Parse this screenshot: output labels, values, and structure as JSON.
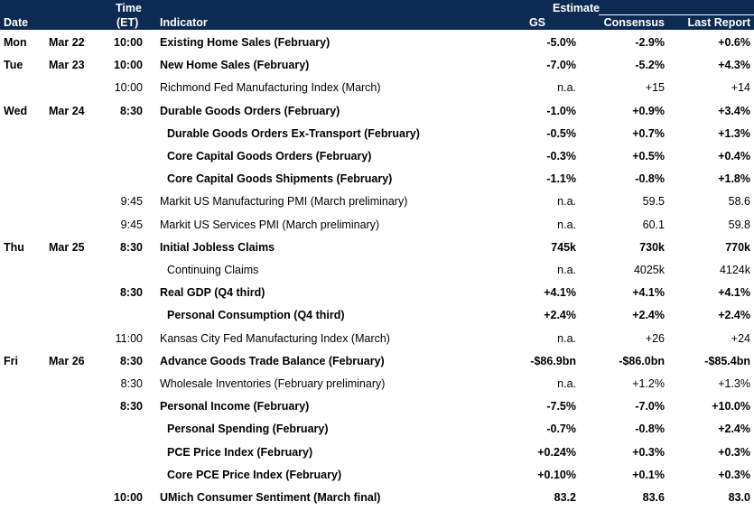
{
  "header": {
    "date": "Date",
    "time_line1": "Time",
    "time_line2": "(ET)",
    "indicator": "Indicator",
    "estimate": "Estimate",
    "gs": "GS",
    "consensus": "Consensus",
    "last_report": "Last Report"
  },
  "rows": [
    {
      "day": "Mon",
      "date": "Mar 22",
      "time": "10:00",
      "indicator": "Existing Home Sales (February)",
      "gs": "-5.0%",
      "consensus": "-2.9%",
      "last": "+0.6%"
    },
    {
      "day": "Tue",
      "date": "Mar 23",
      "time": "10:00",
      "indicator": "New Home Sales (February)",
      "gs": "-7.0%",
      "consensus": "-5.2%",
      "last": "+4.3%"
    },
    {
      "day": "",
      "date": "",
      "time": "10:00",
      "indicator": "Richmond Fed Manufacturing Index (March)",
      "gs": "n.a.",
      "consensus": "+15",
      "last": "+14"
    },
    {
      "day": "Wed",
      "date": "Mar 24",
      "time": "8:30",
      "indicator": "Durable Goods Orders (February)",
      "gs": "-1.0%",
      "consensus": "+0.9%",
      "last": "+3.4%"
    },
    {
      "day": "",
      "date": "",
      "time": "",
      "indicator": "Durable Goods Orders Ex-Transport (February)",
      "gs": "-0.5%",
      "consensus": "+0.7%",
      "last": "+1.3%"
    },
    {
      "day": "",
      "date": "",
      "time": "",
      "indicator": "Core Capital Goods Orders (February)",
      "gs": "-0.3%",
      "consensus": "+0.5%",
      "last": "+0.4%"
    },
    {
      "day": "",
      "date": "",
      "time": "",
      "indicator": "Core Capital Goods Shipments (February)",
      "gs": "-1.1%",
      "consensus": "-0.8%",
      "last": "+1.8%"
    },
    {
      "day": "",
      "date": "",
      "time": "9:45",
      "indicator": "Markit US Manufacturing PMI (March preliminary)",
      "gs": "n.a.",
      "consensus": "59.5",
      "last": "58.6"
    },
    {
      "day": "",
      "date": "",
      "time": "9:45",
      "indicator": "Markit US Services PMI (March preliminary)",
      "gs": "n.a.",
      "consensus": "60.1",
      "last": "59.8"
    },
    {
      "day": "Thu",
      "date": "Mar 25",
      "time": "8:30",
      "indicator": "Initial Jobless Claims",
      "gs": "745k",
      "consensus": "730k",
      "last": "770k"
    },
    {
      "day": "",
      "date": "",
      "time": "",
      "indicator": "Continuing Claims",
      "gs": "n.a.",
      "consensus": "4025k",
      "last": "4124k"
    },
    {
      "day": "",
      "date": "",
      "time": "8:30",
      "indicator": "Real GDP (Q4 third)",
      "gs": "+4.1%",
      "consensus": "+4.1%",
      "last": "+4.1%"
    },
    {
      "day": "",
      "date": "",
      "time": "",
      "indicator": "Personal Consumption (Q4 third)",
      "gs": "+2.4%",
      "consensus": "+2.4%",
      "last": "+2.4%"
    },
    {
      "day": "",
      "date": "",
      "time": "11:00",
      "indicator": "Kansas City Fed Manufacturing Index (March)",
      "gs": "n.a.",
      "consensus": "+26",
      "last": "+24"
    },
    {
      "day": "Fri",
      "date": "Mar 26",
      "time": "8:30",
      "indicator": "Advance Goods Trade Balance (February)",
      "gs": "-$86.9bn",
      "consensus": "-$86.0bn",
      "last": "-$85.4bn"
    },
    {
      "day": "",
      "date": "",
      "time": "8:30",
      "indicator": "Wholesale Inventories (February preliminary)",
      "gs": "n.a.",
      "consensus": "+1.2%",
      "last": "+1.3%"
    },
    {
      "day": "",
      "date": "",
      "time": "8:30",
      "indicator": "Personal Income (February)",
      "gs": "-7.5%",
      "consensus": "-7.0%",
      "last": "+10.0%"
    },
    {
      "day": "",
      "date": "",
      "time": "",
      "indicator": "Personal Spending (February)",
      "gs": "-0.7%",
      "consensus": "-0.8%",
      "last": "+2.4%"
    },
    {
      "day": "",
      "date": "",
      "time": "",
      "indicator": "PCE Price Index (February)",
      "gs": "+0.24%",
      "consensus": "+0.3%",
      "last": "+0.3%"
    },
    {
      "day": "",
      "date": "",
      "time": "",
      "indicator": "Core PCE Price Index (February)",
      "gs": "+0.10%",
      "consensus": "+0.1%",
      "last": "+0.3%"
    },
    {
      "day": "",
      "date": "",
      "time": "10:00",
      "indicator": "UMich Consumer Sentiment (March final)",
      "gs": "83.2",
      "consensus": "83.6",
      "last": "83.0"
    }
  ]
}
